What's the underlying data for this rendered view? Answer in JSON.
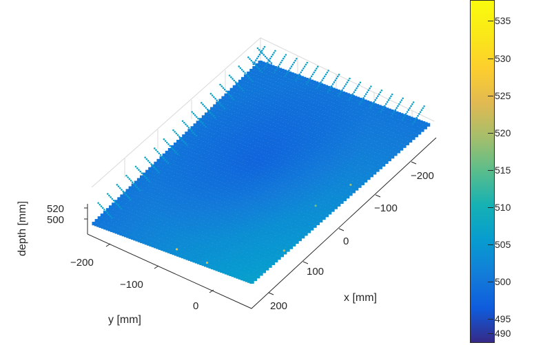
{
  "chart_data": {
    "type": "scatter",
    "subtype": "3d-point-cloud",
    "title": "",
    "xlabel": "x [mm]",
    "ylabel": "y [mm]",
    "zlabel": "depth [mm]",
    "x_ticks": [
      "200",
      "100",
      "0",
      "−100",
      "−200"
    ],
    "y_ticks": [
      "−200",
      "−100",
      "0"
    ],
    "z_ticks": [
      "520",
      "500"
    ],
    "xlim": [
      -250,
      250
    ],
    "ylim": [
      -300,
      100
    ],
    "zlim": [
      490,
      540
    ],
    "colormap": "parula",
    "colorbar": {
      "ticks": [
        "535",
        "530",
        "525",
        "520",
        "515",
        "510",
        "505",
        "500",
        "495",
        "490"
      ],
      "range": [
        488,
        539
      ]
    },
    "surface": {
      "dominant_depth": 497,
      "center_depth": 493,
      "edge_depth_range": [
        500,
        505
      ]
    },
    "grid": true
  }
}
